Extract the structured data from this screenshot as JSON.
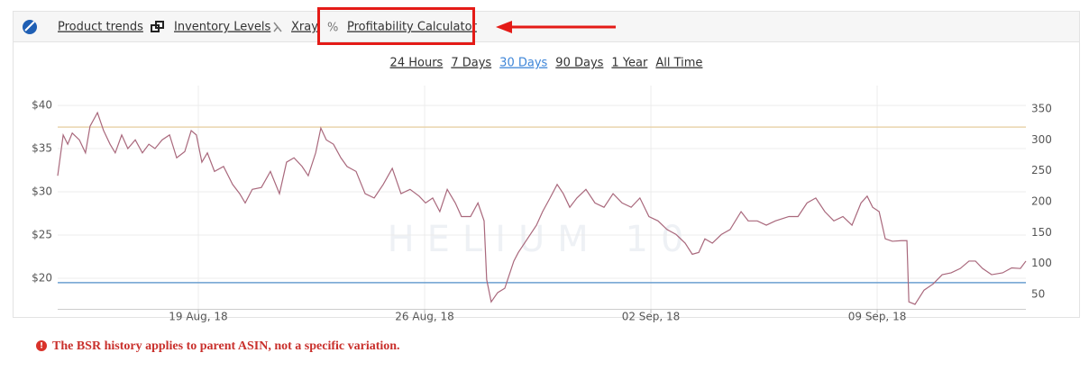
{
  "toolbar": {
    "tabs": [
      "Product trends",
      "Inventory Levels",
      "Xray",
      "Profitability Calculator"
    ]
  },
  "ranges": {
    "options": [
      "24 Hours",
      "7 Days",
      "30 Days",
      "90 Days",
      "1 Year",
      "All Time"
    ],
    "active": 2
  },
  "chart_data": {
    "type": "line",
    "watermark": "HELIUM 10",
    "x": [
      -4.35,
      -4.18,
      -4.04,
      -3.9,
      -3.68,
      -3.49,
      -3.35,
      -3.12,
      -2.93,
      -2.73,
      -2.57,
      -2.37,
      -2.18,
      -1.95,
      -1.73,
      -1.53,
      -1.34,
      -1.12,
      -0.89,
      -0.67,
      -0.42,
      -0.22,
      -0.06,
      0.11,
      0.28,
      0.5,
      0.78,
      1.06,
      1.28,
      1.45,
      1.67,
      1.95,
      2.23,
      2.51,
      2.73,
      2.96,
      3.21,
      3.4,
      3.63,
      3.79,
      3.96,
      4.18,
      4.41,
      4.6,
      4.88,
      5.16,
      5.44,
      5.72,
      6.0,
      6.27,
      6.55,
      6.83,
      7.03,
      7.25,
      7.47,
      7.7,
      7.95,
      8.14,
      8.42,
      8.65,
      8.84,
      8.92,
      9.06,
      9.26,
      9.48,
      9.62,
      9.76,
      9.9,
      10.18,
      10.46,
      10.65,
      10.88,
      11.1,
      11.29,
      11.49,
      11.71,
      11.99,
      12.27,
      12.55,
      12.83,
      13.11,
      13.39,
      13.66,
      13.94,
      14.22,
      14.5,
      14.78,
      15.06,
      15.28,
      15.48,
      15.67,
      15.9,
      16.18,
      16.45,
      16.79,
      17.01,
      17.29,
      17.57,
      17.85,
      18.27,
      18.55,
      18.83,
      19.1,
      19.38,
      19.66,
      19.94,
      20.22,
      20.5,
      20.69,
      20.86,
      21.06,
      21.25,
      21.47,
      21.75,
      21.92,
      21.98,
      22.17,
      22.45,
      22.73,
      23.01,
      23.29,
      23.57,
      23.84,
      24.04,
      24.26,
      24.54,
      24.88,
      25.16,
      25.43,
      25.6
    ],
    "series": [
      {
        "color": "#a9687c",
        "axis": "y2",
        "values": [
          242,
          308,
          293,
          311,
          300,
          279,
          322,
          344,
          315,
          293,
          279,
          308,
          286,
          300,
          279,
          293,
          286,
          300,
          308,
          271,
          281,
          315,
          308,
          264,
          279,
          249,
          257,
          228,
          213,
          198,
          220,
          223,
          249,
          213,
          264,
          271,
          257,
          242,
          279,
          319,
          300,
          293,
          271,
          257,
          249,
          213,
          206,
          228,
          254,
          213,
          220,
          209,
          198,
          206,
          184,
          220,
          198,
          176,
          176,
          198,
          169,
          74,
          38,
          53,
          60,
          82,
          104,
          118,
          140,
          162,
          184,
          206,
          228,
          213,
          191,
          206,
          220,
          198,
          191,
          213,
          198,
          191,
          206,
          176,
          169,
          155,
          147,
          133,
          115,
          118,
          140,
          133,
          147,
          155,
          184,
          169,
          169,
          162,
          169,
          176,
          176,
          198,
          206,
          184,
          169,
          176,
          162,
          198,
          209,
          191,
          184,
          140,
          136,
          137,
          137,
          38,
          34,
          57,
          67,
          82,
          85,
          92,
          104,
          104,
          92,
          82,
          85,
          93,
          92,
          104
        ]
      }
    ],
    "reference_lines": [
      {
        "value": 37.5,
        "color": "#e9d4ad"
      },
      {
        "value": 19.5,
        "color": "#6c9fd0"
      }
    ],
    "xlim": [
      -4.35,
      25.6
    ],
    "xticks": [
      {
        "value": 0,
        "label": "19 Aug, 18"
      },
      {
        "value": 7,
        "label": "26 Aug, 18"
      },
      {
        "value": 14,
        "label": "02 Sep, 18"
      },
      {
        "value": 21,
        "label": "09 Sep, 18"
      }
    ],
    "ylim": [
      16.46,
      42.3
    ],
    "yticks": [
      {
        "value": 20,
        "label": "$20"
      },
      {
        "value": 25,
        "label": "$25"
      },
      {
        "value": 30,
        "label": "$30"
      },
      {
        "value": 35,
        "label": "$35"
      },
      {
        "value": 40,
        "label": "$40"
      }
    ],
    "y2lim": [
      26.7,
      387.9
    ],
    "y2ticks": [
      50,
      100,
      150,
      200,
      250,
      300,
      350
    ],
    "grid": true
  },
  "notice": "The BSR history applies to parent ASIN, not a specific variation."
}
